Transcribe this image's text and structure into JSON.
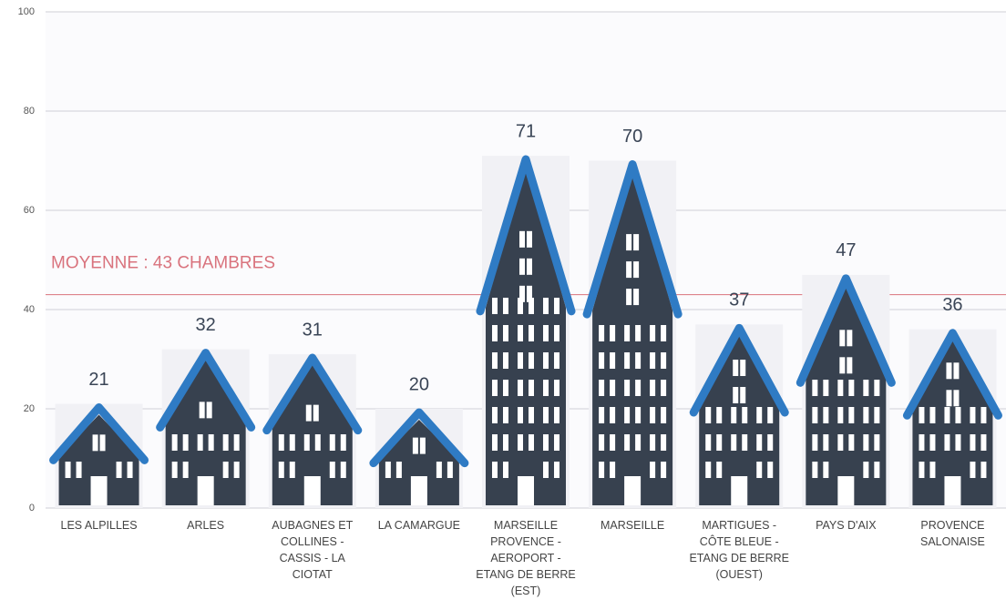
{
  "chart_data": {
    "type": "pictogram-bar",
    "categories": [
      "LES ALPILLES",
      "ARLES",
      "AUBAGNES ET COLLINES - CASSIS - LA CIOTAT",
      "LA CAMARGUE",
      "MARSEILLE PROVENCE - AEROPORT - ETANG DE BERRE (EST)",
      "MARSEILLE",
      "MARTIGUES - CÔTE BLEUE - ETANG DE BERRE (OUEST)",
      "PAYS D'AIX",
      "PROVENCE SALONAISE"
    ],
    "values": [
      21,
      32,
      31,
      20,
      71,
      70,
      37,
      47,
      36
    ],
    "ylim": [
      0,
      100
    ],
    "yticks": [
      0,
      20,
      40,
      60,
      80,
      100
    ],
    "grid": true,
    "color": "#37414f",
    "roof_color": "#2f7bc4",
    "average": {
      "value": 43,
      "label": "MOYENNE : 43 CHAMBRES",
      "color": "#d9737d"
    }
  }
}
